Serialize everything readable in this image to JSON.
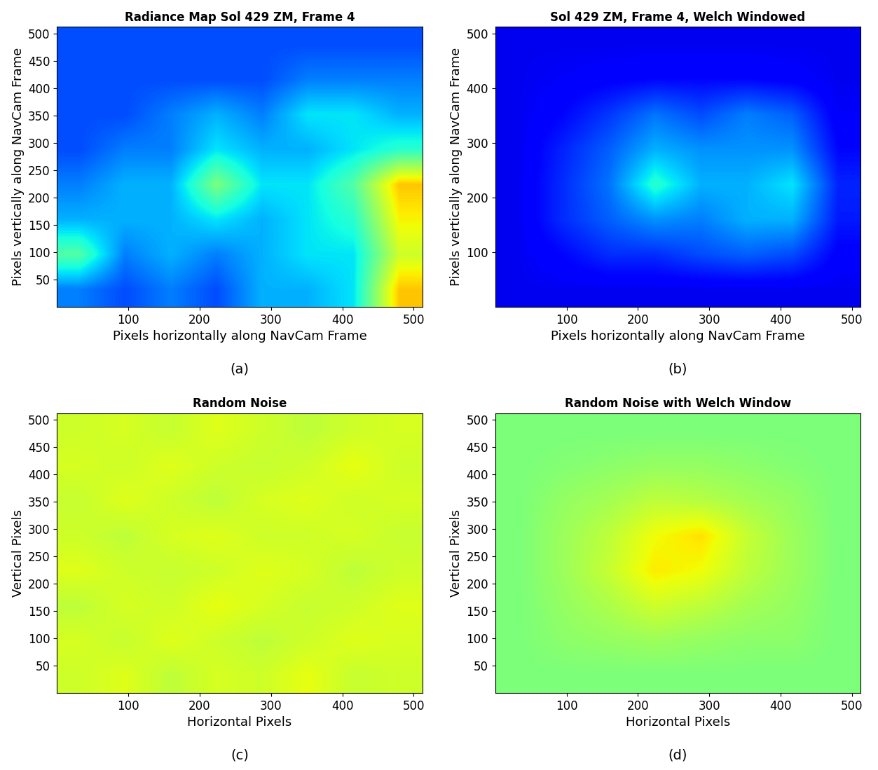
{
  "chart_data": [
    {
      "type": "heatmap",
      "title": "Radiance Map Sol 429 ZM, Frame 4",
      "x_label": "Pixels horizontally along NavCam Frame",
      "y_label": "Pixels vertically along NavCam Frame",
      "caption": "(a)",
      "xlim": [
        0,
        512
      ],
      "ylim": [
        0,
        512
      ],
      "xticks": [
        100,
        200,
        300,
        400,
        500
      ],
      "yticks": [
        50,
        100,
        150,
        200,
        250,
        300,
        350,
        400,
        450,
        500
      ],
      "clim": [
        0,
        1
      ],
      "cells": [
        [
          0.25,
          0.2,
          0.25,
          0.2,
          0.3,
          0.3,
          0.35,
          0.7
        ],
        [
          0.45,
          0.25,
          0.3,
          0.25,
          0.3,
          0.35,
          0.35,
          0.6
        ],
        [
          0.3,
          0.3,
          0.3,
          0.35,
          0.3,
          0.35,
          0.4,
          0.65
        ],
        [
          0.25,
          0.3,
          0.3,
          0.5,
          0.35,
          0.35,
          0.45,
          0.7
        ],
        [
          0.2,
          0.25,
          0.25,
          0.35,
          0.3,
          0.3,
          0.35,
          0.4
        ],
        [
          0.2,
          0.2,
          0.25,
          0.3,
          0.25,
          0.35,
          0.35,
          0.3
        ],
        [
          0.2,
          0.2,
          0.2,
          0.2,
          0.2,
          0.25,
          0.25,
          0.25
        ],
        [
          0.2,
          0.2,
          0.2,
          0.2,
          0.2,
          0.2,
          0.2,
          0.2
        ]
      ]
    },
    {
      "type": "heatmap",
      "title": "Sol 429 ZM, Frame 4, Welch Windowed",
      "x_label": "Pixels horizontally along NavCam Frame",
      "y_label": "Pixels vertically along NavCam Frame",
      "caption": "(b)",
      "xlim": [
        0,
        512
      ],
      "ylim": [
        0,
        512
      ],
      "xticks": [
        100,
        200,
        300,
        400,
        500
      ],
      "yticks": [
        100,
        200,
        300,
        400,
        500
      ],
      "clim": [
        0,
        1
      ],
      "cells": [
        [
          0.1,
          0.1,
          0.1,
          0.1,
          0.1,
          0.1,
          0.1,
          0.1
        ],
        [
          0.1,
          0.13,
          0.17,
          0.17,
          0.2,
          0.22,
          0.2,
          0.12
        ],
        [
          0.1,
          0.17,
          0.22,
          0.27,
          0.25,
          0.3,
          0.3,
          0.15
        ],
        [
          0.1,
          0.17,
          0.24,
          0.4,
          0.3,
          0.3,
          0.35,
          0.16
        ],
        [
          0.1,
          0.16,
          0.22,
          0.3,
          0.27,
          0.27,
          0.27,
          0.13
        ],
        [
          0.1,
          0.13,
          0.18,
          0.24,
          0.2,
          0.25,
          0.22,
          0.11
        ],
        [
          0.1,
          0.11,
          0.12,
          0.13,
          0.13,
          0.13,
          0.12,
          0.1
        ],
        [
          0.1,
          0.1,
          0.1,
          0.1,
          0.1,
          0.1,
          0.1,
          0.1
        ]
      ]
    },
    {
      "type": "heatmap",
      "title": "Random Noise",
      "x_label": "Horizontal Pixels",
      "y_label": "Vertical Pixels",
      "caption": "(c)",
      "xlim": [
        0,
        512
      ],
      "ylim": [
        0,
        512
      ],
      "xticks": [
        100,
        200,
        300,
        400,
        500
      ],
      "yticks": [
        50,
        100,
        150,
        200,
        250,
        300,
        350,
        400,
        450,
        500
      ],
      "clim": [
        0,
        1
      ],
      "cells": [
        [
          0.6,
          0.62,
          0.58,
          0.61,
          0.6,
          0.63,
          0.59,
          0.6
        ],
        [
          0.61,
          0.59,
          0.62,
          0.6,
          0.58,
          0.6,
          0.62,
          0.61
        ],
        [
          0.58,
          0.61,
          0.6,
          0.63,
          0.61,
          0.59,
          0.6,
          0.62
        ],
        [
          0.62,
          0.6,
          0.59,
          0.6,
          0.62,
          0.61,
          0.58,
          0.6
        ],
        [
          0.6,
          0.58,
          0.61,
          0.62,
          0.6,
          0.6,
          0.61,
          0.59
        ],
        [
          0.59,
          0.62,
          0.6,
          0.58,
          0.61,
          0.62,
          0.6,
          0.61
        ],
        [
          0.61,
          0.6,
          0.62,
          0.6,
          0.59,
          0.6,
          0.63,
          0.6
        ],
        [
          0.6,
          0.61,
          0.59,
          0.62,
          0.6,
          0.58,
          0.6,
          0.61
        ]
      ]
    },
    {
      "type": "heatmap",
      "title": "Random Noise with Welch Window",
      "x_label": "Horizontal Pixels",
      "y_label": "Vertical Pixels",
      "caption": "(d)",
      "xlim": [
        0,
        512
      ],
      "ylim": [
        0,
        512
      ],
      "xticks": [
        100,
        200,
        300,
        400,
        500
      ],
      "yticks": [
        50,
        100,
        150,
        200,
        250,
        300,
        350,
        400,
        450,
        500
      ],
      "clim": [
        0,
        1
      ],
      "cells": [
        [
          0.5,
          0.5,
          0.5,
          0.5,
          0.5,
          0.5,
          0.5,
          0.5
        ],
        [
          0.5,
          0.52,
          0.53,
          0.54,
          0.53,
          0.52,
          0.52,
          0.5
        ],
        [
          0.5,
          0.53,
          0.56,
          0.6,
          0.58,
          0.55,
          0.53,
          0.5
        ],
        [
          0.5,
          0.54,
          0.59,
          0.66,
          0.64,
          0.58,
          0.54,
          0.5
        ],
        [
          0.5,
          0.54,
          0.58,
          0.64,
          0.67,
          0.59,
          0.54,
          0.5
        ],
        [
          0.5,
          0.53,
          0.55,
          0.58,
          0.57,
          0.55,
          0.53,
          0.5
        ],
        [
          0.5,
          0.51,
          0.52,
          0.53,
          0.53,
          0.52,
          0.51,
          0.5
        ],
        [
          0.5,
          0.5,
          0.5,
          0.5,
          0.5,
          0.5,
          0.5,
          0.5
        ]
      ]
    }
  ]
}
